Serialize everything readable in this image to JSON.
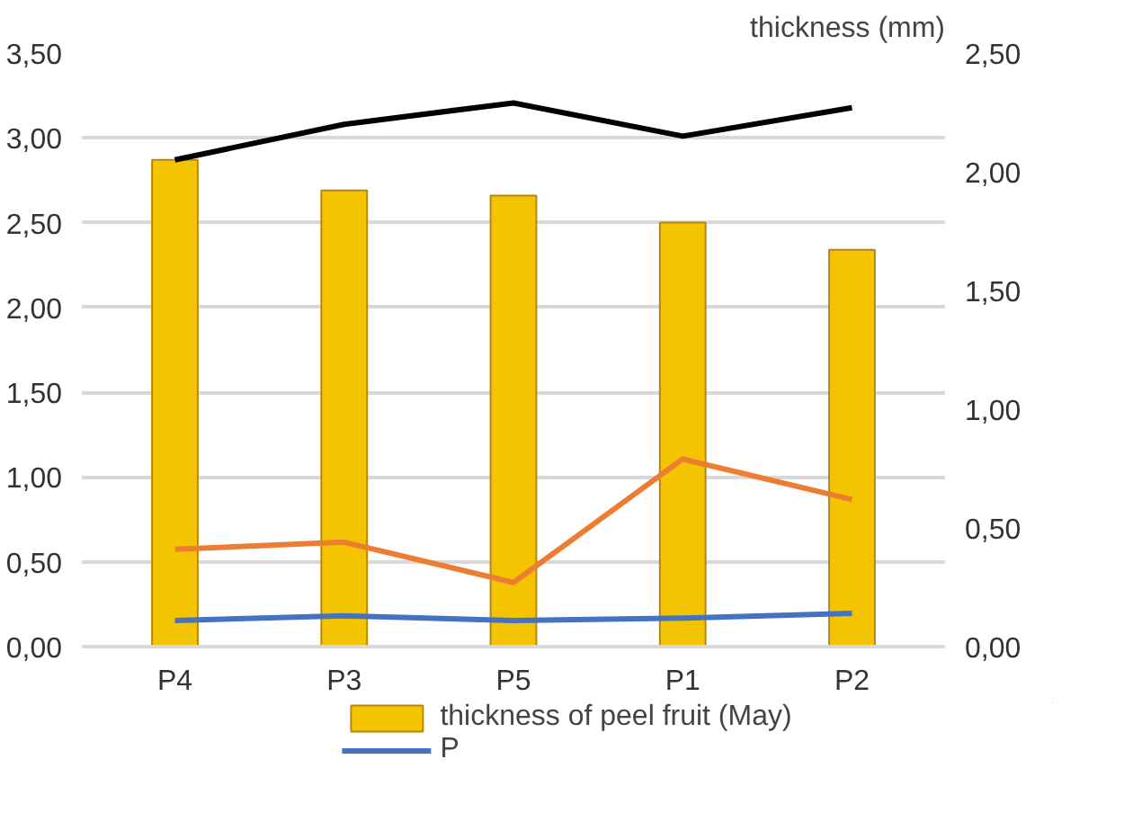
{
  "chart_data": {
    "type": "bar",
    "y2label": "thickness (mm)",
    "categories": [
      "P4",
      "P3",
      "P5",
      "P1",
      "P2"
    ],
    "series": [
      {
        "name": "thickness of peel fruit (May)",
        "color": "#f5c400",
        "values": [
          2.87,
          2.69,
          2.66,
          2.5,
          2.34
        ]
      },
      {
        "name": "P",
        "type": "line",
        "axis": "y2",
        "color": "#4472c4",
        "values": [
          0.11,
          0.13,
          0.11,
          0.12,
          0.14
        ]
      },
      {
        "type": "line",
        "axis": "y2",
        "color": "#ed7d31",
        "values": [
          0.41,
          0.44,
          0.27,
          0.79,
          0.62
        ]
      },
      {
        "type": "line",
        "axis": "y2",
        "color": "#000000",
        "values": [
          2.05,
          2.2,
          2.29,
          2.15,
          2.27
        ]
      }
    ],
    "ylim": [
      0,
      3.5
    ],
    "yticks": [
      {
        "value": 0,
        "label": "0,00"
      },
      {
        "value": 0.5,
        "label": "0,50"
      },
      {
        "value": 1,
        "label": "1,00"
      },
      {
        "value": 1.5,
        "label": "1,50"
      },
      {
        "value": 2,
        "label": "2,00"
      },
      {
        "value": 2.5,
        "label": "2,50"
      },
      {
        "value": 3,
        "label": "3,00"
      },
      {
        "value": 3.5,
        "label": "3,50"
      }
    ],
    "y2lim": [
      0,
      2.5
    ],
    "y2ticks": [
      {
        "value": 0,
        "label": "0,00"
      },
      {
        "value": 0.5,
        "label": "0,50"
      },
      {
        "value": 1,
        "label": "1,00"
      },
      {
        "value": 1.5,
        "label": "1,50"
      },
      {
        "value": 2,
        "label": "2,00"
      },
      {
        "value": 2.5,
        "label": "2,50"
      }
    ],
    "grid": "y",
    "legend": "bottom",
    "marker": "none",
    "line_style": "solid"
  }
}
